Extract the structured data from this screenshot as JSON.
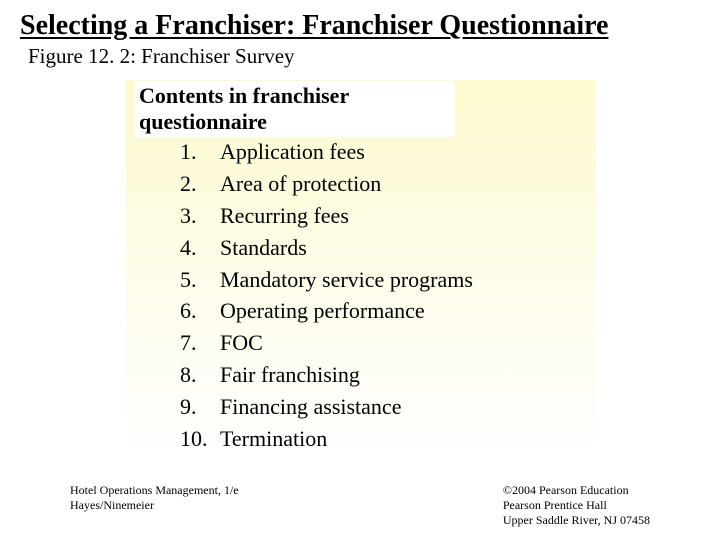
{
  "title": "Selecting a Franchiser: Franchiser Questionnaire",
  "subtitle": "Figure 12. 2: Franchiser Survey",
  "contents_header": "Contents in franchiser questionnaire",
  "items": [
    {
      "num": "1.",
      "text": "Application fees"
    },
    {
      "num": "2.",
      "text": "Area of protection"
    },
    {
      "num": "3.",
      "text": "Recurring fees"
    },
    {
      "num": "4.",
      "text": "Standards"
    },
    {
      "num": "5.",
      "text": "Mandatory service programs"
    },
    {
      "num": "6.",
      "text": "Operating performance"
    },
    {
      "num": "7.",
      "text": "FOC"
    },
    {
      "num": "8.",
      "text": "Fair franchising"
    },
    {
      "num": "9.",
      "text": "Financing assistance"
    },
    {
      "num": "10.",
      "text": "Termination"
    }
  ],
  "footer": {
    "left_line1": "Hotel Operations Management, 1/e",
    "left_line2": "Hayes/Ninemeier",
    "right_line1": "©2004 Pearson Education",
    "right_line2": "Pearson Prentice Hall",
    "right_line3": "Upper Saddle River, NJ 07458"
  },
  "colors": {
    "background": "#ffffff",
    "box_gradient_top": "#fdfacf",
    "box_gradient_bottom": "#ffffff",
    "text": "#000000"
  },
  "typography": {
    "title_fontsize": 28,
    "subtitle_fontsize": 21,
    "header_fontsize": 22,
    "list_fontsize": 22,
    "footer_fontsize": 12,
    "font_family": "Times New Roman"
  }
}
